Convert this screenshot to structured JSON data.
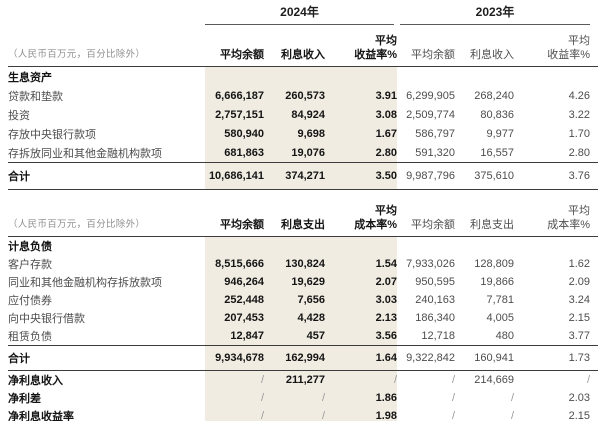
{
  "unit_note": "（人民币百万元，百分比除外）",
  "colors": {
    "highlight": "#f1ece2",
    "text_dark": "#141414",
    "text_gray": "#4d4d4d",
    "rule": "#3c3c3c"
  },
  "assets_table": {
    "year_current": "2024年",
    "year_prior": "2023年",
    "headers": {
      "avg_balance": "平均余额",
      "amount": "利息收入",
      "rate_line1": "平均",
      "rate_line2": "收益率%"
    },
    "section_label": "生息资产",
    "rows": [
      {
        "label": "贷款和垫款",
        "v": [
          "6,666,187",
          "260,573",
          "3.91",
          "6,299,905",
          "268,240",
          "4.26"
        ]
      },
      {
        "label": "投资",
        "v": [
          "2,757,151",
          "84,924",
          "3.08",
          "2,509,774",
          "80,836",
          "3.22"
        ]
      },
      {
        "label": "存放中央银行款项",
        "v": [
          "580,940",
          "9,698",
          "1.67",
          "586,797",
          "9,977",
          "1.70"
        ]
      },
      {
        "label": "存拆放同业和其他金融机构款项",
        "v": [
          "681,863",
          "19,076",
          "2.80",
          "591,320",
          "16,557",
          "2.80"
        ]
      }
    ],
    "total": {
      "label": "合计",
      "v": [
        "10,686,141",
        "374,271",
        "3.50",
        "9,987,796",
        "375,610",
        "3.76"
      ]
    }
  },
  "liabilities_table": {
    "headers": {
      "avg_balance": "平均余额",
      "amount": "利息支出",
      "rate_line1": "平均",
      "rate_line2": "成本率%"
    },
    "section_label": "计息负债",
    "rows": [
      {
        "label": "客户存款",
        "v": [
          "8,515,666",
          "130,824",
          "1.54",
          "7,933,026",
          "128,809",
          "1.62"
        ]
      },
      {
        "label": "同业和其他金融机构存拆放款项",
        "v": [
          "946,264",
          "19,629",
          "2.07",
          "950,595",
          "19,866",
          "2.09"
        ]
      },
      {
        "label": "应付债券",
        "v": [
          "252,448",
          "7,656",
          "3.03",
          "240,163",
          "7,781",
          "3.24"
        ]
      },
      {
        "label": "向中央银行借款",
        "v": [
          "207,453",
          "4,428",
          "2.13",
          "186,340",
          "4,005",
          "2.15"
        ]
      },
      {
        "label": "租赁负债",
        "v": [
          "12,847",
          "457",
          "3.56",
          "12,718",
          "480",
          "3.77"
        ]
      }
    ],
    "total": {
      "label": "合计",
      "v": [
        "9,934,678",
        "162,994",
        "1.64",
        "9,322,842",
        "160,941",
        "1.73"
      ]
    },
    "summary_rows": [
      {
        "label": "净利息收入",
        "v": [
          "/",
          "211,277",
          "/",
          "/",
          "214,669",
          "/"
        ]
      },
      {
        "label": "净利差",
        "v": [
          "/",
          "/",
          "1.86",
          "/",
          "/",
          "2.03"
        ]
      },
      {
        "label": "净利息收益率",
        "v": [
          "/",
          "/",
          "1.98",
          "/",
          "/",
          "2.15"
        ]
      }
    ]
  }
}
